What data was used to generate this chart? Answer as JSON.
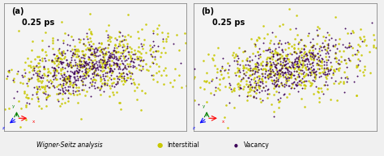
{
  "title_a": "0.25 ps",
  "title_b": "0.25 ps",
  "label_a": "(a)",
  "label_b": "(b)",
  "interstitial_color": "#c8c800",
  "vacancy_color": "#3b0057",
  "background_color": "#f0f0f0",
  "panel_bg": "#f4f4f4",
  "legend_text_wigner": "Wigner-Seitz analysis",
  "legend_text_interstitial": "Interstitial",
  "legend_text_vacancy": "Vacancy",
  "figsize": [
    4.74,
    1.93
  ],
  "dpi": 100,
  "n_interstitial_a": 550,
  "n_vacancy_a": 500,
  "n_interstitial_b": 500,
  "n_vacancy_b": 480,
  "seed_a": 12,
  "seed_b": 77
}
